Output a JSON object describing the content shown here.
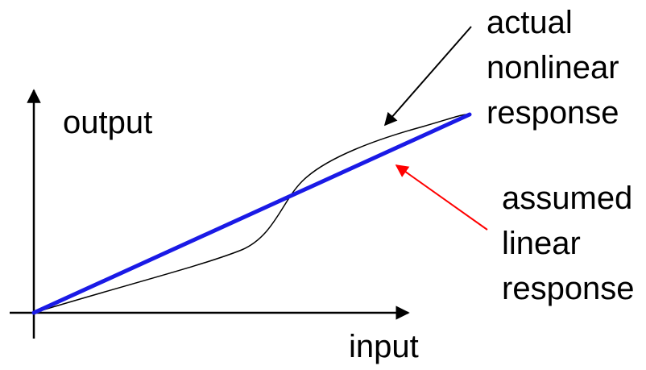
{
  "axes": {
    "y_label": "output",
    "x_label": "input"
  },
  "annotations": {
    "actual": {
      "lines": [
        "actual",
        "nonlinear",
        "response"
      ],
      "arrow_color": "#000000"
    },
    "assumed": {
      "lines": [
        "assumed",
        "linear",
        "response"
      ],
      "arrow_color": "#ff0000"
    }
  },
  "colors": {
    "axis": "#000000",
    "linear_line": "#1a1ae6",
    "nonlinear_curve": "#000000",
    "background": "#ffffff"
  }
}
